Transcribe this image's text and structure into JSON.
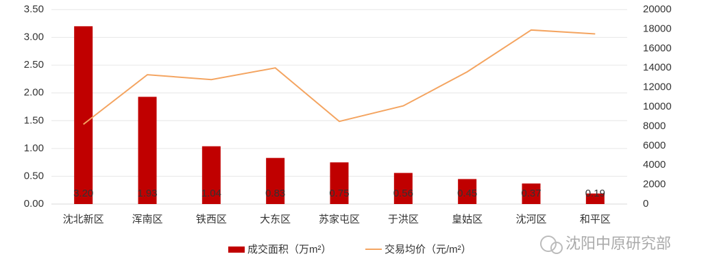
{
  "chart_data": {
    "type": "bar-line",
    "categories": [
      "沈北新区",
      "浑南区",
      "铁西区",
      "大东区",
      "苏家屯区",
      "于洪区",
      "皇姑区",
      "沈河区",
      "和平区"
    ],
    "series": [
      {
        "name": "成交面积（万m²）",
        "type": "bar",
        "color": "#c00000",
        "values": [
          3.2,
          1.93,
          1.04,
          0.83,
          0.75,
          0.56,
          0.45,
          0.37,
          0.19
        ],
        "value_labels": [
          "3.20",
          "1.93",
          "1.04",
          "0.83",
          "0.75",
          "0.56",
          "0.45",
          "0.37",
          "0.19"
        ]
      },
      {
        "name": "交易均价（元/m²）",
        "type": "line",
        "axis": "y2",
        "color": "#f4a460",
        "values": [
          8200,
          13300,
          12800,
          14000,
          8500,
          10100,
          13600,
          17900,
          17500
        ]
      }
    ],
    "ylim": [
      0,
      3.5
    ],
    "yticks": [
      {
        "value": 0,
        "label": "0.00"
      },
      {
        "value": 0.5,
        "label": "0.50"
      },
      {
        "value": 1,
        "label": "1.00"
      },
      {
        "value": 1.5,
        "label": "1.50"
      },
      {
        "value": 2,
        "label": "2.00"
      },
      {
        "value": 2.5,
        "label": "2.50"
      },
      {
        "value": 3,
        "label": "3.00"
      },
      {
        "value": 3.5,
        "label": "3.50"
      }
    ],
    "y2lim": [
      0,
      20000
    ],
    "y2ticks": [
      0,
      2000,
      4000,
      6000,
      8000,
      10000,
      12000,
      14000,
      16000,
      18000,
      20000
    ],
    "grid": true,
    "watermark": "沈阳中原研究部"
  }
}
